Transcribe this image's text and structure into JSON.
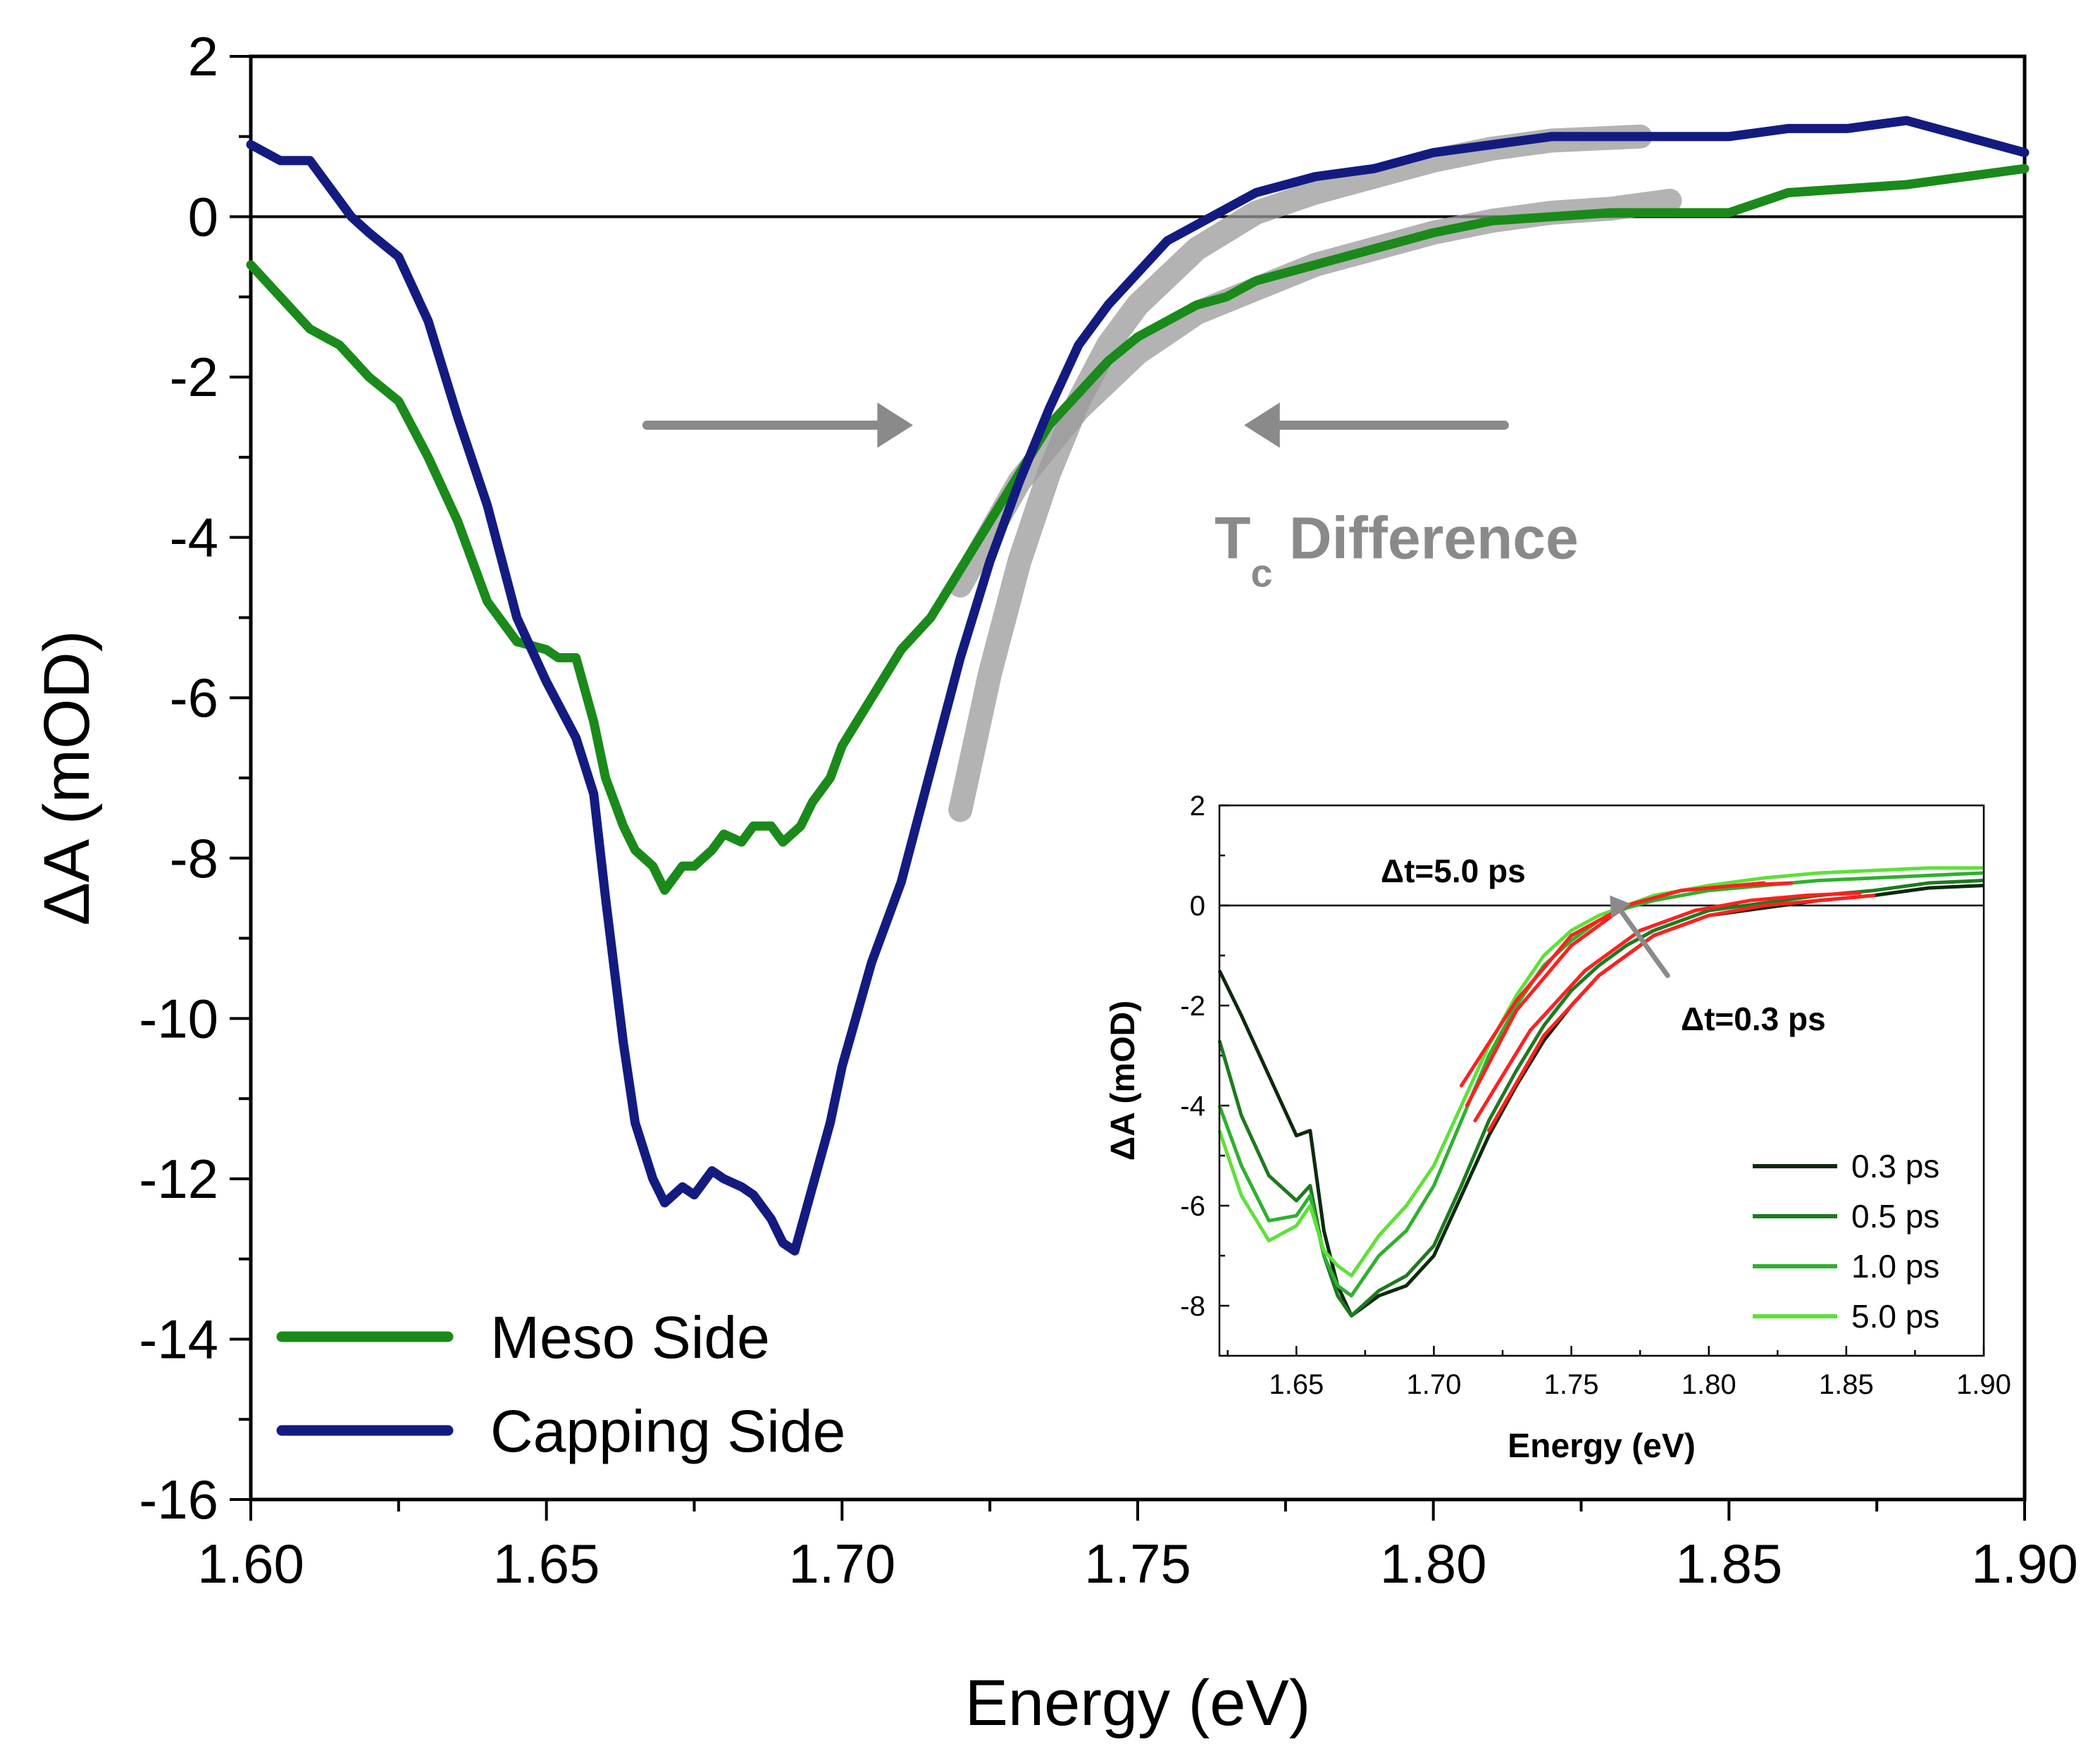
{
  "chart_data": [
    {
      "type": "line",
      "xlabel": "Energy (eV)",
      "ylabel": "ΔA (mOD)",
      "xlim": [
        1.6,
        1.9
      ],
      "ylim": [
        -16,
        2
      ],
      "xticks": [
        1.6,
        1.65,
        1.7,
        1.75,
        1.8,
        1.85,
        1.9
      ],
      "xtick_labels": [
        "1.60",
        "1.65",
        "1.70",
        "1.75",
        "1.80",
        "1.85",
        "1.90"
      ],
      "yticks": [
        -16,
        -14,
        -12,
        -10,
        -8,
        -6,
        -4,
        -2,
        0,
        2
      ],
      "ytick_labels": [
        "-16",
        "-14",
        "-12",
        "-10",
        "-8",
        "-6",
        "-4",
        "-2",
        "0",
        "2"
      ],
      "legend_position": "bottom-left",
      "series": [
        {
          "name": "Meso Side",
          "color": "#1a8a1a",
          "x": [
            1.6,
            1.605,
            1.61,
            1.615,
            1.62,
            1.625,
            1.63,
            1.635,
            1.64,
            1.645,
            1.65,
            1.652,
            1.655,
            1.658,
            1.66,
            1.663,
            1.665,
            1.668,
            1.67,
            1.673,
            1.675,
            1.678,
            1.68,
            1.683,
            1.685,
            1.688,
            1.69,
            1.693,
            1.695,
            1.698,
            1.7,
            1.705,
            1.71,
            1.715,
            1.72,
            1.725,
            1.73,
            1.735,
            1.74,
            1.745,
            1.75,
            1.755,
            1.76,
            1.765,
            1.77,
            1.775,
            1.78,
            1.785,
            1.79,
            1.795,
            1.8,
            1.81,
            1.82,
            1.83,
            1.84,
            1.85,
            1.86,
            1.87,
            1.88,
            1.89,
            1.9
          ],
          "y": [
            -0.6,
            -1.0,
            -1.4,
            -1.6,
            -2.0,
            -2.3,
            -3.0,
            -3.8,
            -4.8,
            -5.3,
            -5.4,
            -5.5,
            -5.5,
            -6.3,
            -7.0,
            -7.6,
            -7.9,
            -8.1,
            -8.4,
            -8.1,
            -8.1,
            -7.9,
            -7.7,
            -7.8,
            -7.6,
            -7.6,
            -7.8,
            -7.6,
            -7.3,
            -7.0,
            -6.6,
            -6.0,
            -5.4,
            -5.0,
            -4.4,
            -3.8,
            -3.2,
            -2.6,
            -2.2,
            -1.8,
            -1.5,
            -1.3,
            -1.1,
            -1.0,
            -0.8,
            -0.7,
            -0.6,
            -0.5,
            -0.4,
            -0.3,
            -0.2,
            -0.05,
            0.0,
            0.05,
            0.05,
            0.05,
            0.3,
            0.35,
            0.4,
            0.5,
            0.6
          ]
        },
        {
          "name": "Capping Side",
          "color": "#141b80",
          "x": [
            1.6,
            1.605,
            1.61,
            1.613,
            1.617,
            1.62,
            1.625,
            1.63,
            1.635,
            1.64,
            1.645,
            1.65,
            1.655,
            1.658,
            1.66,
            1.663,
            1.665,
            1.668,
            1.67,
            1.673,
            1.675,
            1.678,
            1.68,
            1.683,
            1.685,
            1.688,
            1.69,
            1.692,
            1.695,
            1.698,
            1.7,
            1.705,
            1.71,
            1.715,
            1.72,
            1.725,
            1.73,
            1.735,
            1.74,
            1.745,
            1.75,
            1.755,
            1.76,
            1.765,
            1.77,
            1.775,
            1.78,
            1.79,
            1.8,
            1.81,
            1.82,
            1.83,
            1.84,
            1.85,
            1.86,
            1.87,
            1.88,
            1.89,
            1.9
          ],
          "y": [
            0.9,
            0.7,
            0.7,
            0.4,
            0.0,
            -0.2,
            -0.5,
            -1.3,
            -2.5,
            -3.6,
            -5.0,
            -5.8,
            -6.5,
            -7.2,
            -8.5,
            -10.3,
            -11.3,
            -12.0,
            -12.3,
            -12.1,
            -12.2,
            -11.9,
            -12.0,
            -12.1,
            -12.2,
            -12.5,
            -12.8,
            -12.9,
            -12.1,
            -11.3,
            -10.6,
            -9.3,
            -8.3,
            -6.9,
            -5.5,
            -4.3,
            -3.3,
            -2.4,
            -1.6,
            -1.1,
            -0.7,
            -0.3,
            -0.1,
            0.1,
            0.3,
            0.4,
            0.5,
            0.6,
            0.8,
            0.9,
            1.0,
            1.0,
            1.0,
            1.0,
            1.1,
            1.1,
            1.2,
            1.0,
            0.8
          ]
        }
      ],
      "fit_curves": [
        {
          "name": "meso-fit",
          "color": "#9a9a9a",
          "x": [
            1.72,
            1.73,
            1.74,
            1.75,
            1.76,
            1.77,
            1.78,
            1.79,
            1.8,
            1.81,
            1.82,
            1.83,
            1.84
          ],
          "y": [
            -4.6,
            -3.3,
            -2.4,
            -1.7,
            -1.2,
            -0.9,
            -0.6,
            -0.4,
            -0.2,
            -0.05,
            0.05,
            0.1,
            0.2
          ]
        },
        {
          "name": "capping-fit",
          "color": "#9a9a9a",
          "x": [
            1.72,
            1.725,
            1.73,
            1.735,
            1.74,
            1.745,
            1.75,
            1.76,
            1.77,
            1.78,
            1.79,
            1.8,
            1.81,
            1.82,
            1.835
          ],
          "y": [
            -7.4,
            -5.7,
            -4.3,
            -3.2,
            -2.3,
            -1.6,
            -1.1,
            -0.4,
            0.05,
            0.3,
            0.5,
            0.7,
            0.85,
            0.95,
            1.0
          ]
        }
      ],
      "annotations": {
        "right_arrow": {
          "from": [
            1.667,
            -2.6
          ],
          "to": [
            1.712,
            -2.6
          ]
        },
        "left_arrow": {
          "from": [
            1.812,
            -2.6
          ],
          "to": [
            1.768,
            -2.6
          ]
        },
        "tc_label_main": "T",
        "tc_label_sub": "c",
        "tc_label_rest": " Difference",
        "tc_label_anchor": [
          1.763,
          -4.0
        ]
      }
    },
    {
      "type": "line",
      "xlabel": "Energy (eV)",
      "ylabel": "ΔA (mOD)",
      "xlim": [
        1.622,
        1.9
      ],
      "ylim": [
        -9,
        2
      ],
      "xticks": [
        1.65,
        1.7,
        1.75,
        1.8,
        1.85,
        1.9
      ],
      "xtick_labels": [
        "1.65",
        "1.70",
        "1.75",
        "1.80",
        "1.85",
        "1.90"
      ],
      "yticks": [
        -8,
        -6,
        -4,
        -2,
        0,
        2
      ],
      "ytick_labels": [
        "-8",
        "-6",
        "-4",
        "-2",
        "0",
        "2"
      ],
      "legend_position": "bottom-right",
      "series": [
        {
          "name": "0.3 ps",
          "color": "#0d2a0d",
          "x": [
            1.622,
            1.63,
            1.64,
            1.65,
            1.655,
            1.66,
            1.665,
            1.67,
            1.68,
            1.69,
            1.7,
            1.71,
            1.72,
            1.73,
            1.74,
            1.75,
            1.76,
            1.77,
            1.78,
            1.79,
            1.8,
            1.82,
            1.84,
            1.86,
            1.88,
            1.9
          ],
          "y": [
            -1.3,
            -2.2,
            -3.4,
            -4.6,
            -4.5,
            -6.5,
            -7.6,
            -8.2,
            -7.8,
            -7.6,
            -7.0,
            -5.8,
            -4.6,
            -3.6,
            -2.7,
            -2.0,
            -1.4,
            -1.0,
            -0.6,
            -0.4,
            -0.2,
            -0.05,
            0.1,
            0.2,
            0.35,
            0.4
          ]
        },
        {
          "name": "0.5 ps",
          "color": "#1e7a1e",
          "x": [
            1.622,
            1.63,
            1.64,
            1.65,
            1.655,
            1.66,
            1.665,
            1.67,
            1.68,
            1.69,
            1.7,
            1.71,
            1.72,
            1.73,
            1.74,
            1.75,
            1.76,
            1.77,
            1.78,
            1.79,
            1.8,
            1.82,
            1.84,
            1.86,
            1.88,
            1.9
          ],
          "y": [
            -2.7,
            -4.2,
            -5.4,
            -5.9,
            -5.6,
            -7.0,
            -7.8,
            -8.2,
            -7.7,
            -7.4,
            -6.8,
            -5.6,
            -4.3,
            -3.3,
            -2.4,
            -1.7,
            -1.2,
            -0.8,
            -0.5,
            -0.3,
            -0.1,
            0.05,
            0.2,
            0.3,
            0.45,
            0.5
          ]
        },
        {
          "name": "1.0 ps",
          "color": "#2fb02f",
          "x": [
            1.622,
            1.63,
            1.64,
            1.65,
            1.655,
            1.66,
            1.665,
            1.67,
            1.68,
            1.69,
            1.7,
            1.71,
            1.72,
            1.73,
            1.74,
            1.75,
            1.76,
            1.77,
            1.78,
            1.79,
            1.8,
            1.82,
            1.84,
            1.86,
            1.88,
            1.9
          ],
          "y": [
            -4.0,
            -5.2,
            -6.3,
            -6.2,
            -5.8,
            -7.0,
            -7.6,
            -7.8,
            -7.0,
            -6.5,
            -5.6,
            -4.3,
            -3.0,
            -2.0,
            -1.2,
            -0.7,
            -0.3,
            -0.05,
            0.1,
            0.2,
            0.3,
            0.4,
            0.5,
            0.55,
            0.6,
            0.65
          ]
        },
        {
          "name": "5.0 ps",
          "color": "#5fe03a",
          "x": [
            1.622,
            1.63,
            1.64,
            1.65,
            1.655,
            1.66,
            1.665,
            1.67,
            1.68,
            1.69,
            1.7,
            1.71,
            1.72,
            1.73,
            1.74,
            1.75,
            1.76,
            1.77,
            1.78,
            1.79,
            1.8,
            1.82,
            1.84,
            1.86,
            1.88,
            1.9
          ],
          "y": [
            -4.5,
            -5.8,
            -6.7,
            -6.4,
            -6.0,
            -6.9,
            -7.2,
            -7.4,
            -6.6,
            -6.0,
            -5.2,
            -4.0,
            -2.8,
            -1.8,
            -1.0,
            -0.5,
            -0.2,
            0.0,
            0.2,
            0.3,
            0.4,
            0.55,
            0.65,
            0.7,
            0.75,
            0.75
          ]
        }
      ],
      "fit_curves": [
        {
          "name": "fit-0.3",
          "color": "#ff2020",
          "x": [
            1.72,
            1.74,
            1.76,
            1.78,
            1.8,
            1.82,
            1.84,
            1.86
          ],
          "y": [
            -4.5,
            -2.6,
            -1.4,
            -0.6,
            -0.2,
            0.0,
            0.1,
            0.2
          ]
        },
        {
          "name": "fit-0.5",
          "color": "#ff2020",
          "x": [
            1.715,
            1.735,
            1.755,
            1.775,
            1.795,
            1.815,
            1.835,
            1.855
          ],
          "y": [
            -4.3,
            -2.5,
            -1.3,
            -0.5,
            -0.1,
            0.1,
            0.2,
            0.25
          ]
        },
        {
          "name": "fit-1.0",
          "color": "#ff2020",
          "x": [
            1.712,
            1.73,
            1.75,
            1.77,
            1.79,
            1.81,
            1.83
          ],
          "y": [
            -4.0,
            -2.1,
            -0.8,
            0.0,
            0.3,
            0.4,
            0.45
          ]
        },
        {
          "name": "fit-5.0",
          "color": "#ff2020",
          "x": [
            1.71,
            1.73,
            1.75,
            1.77,
            1.79,
            1.81,
            1.82
          ],
          "y": [
            -3.6,
            -1.9,
            -0.6,
            0.0,
            0.3,
            0.4,
            0.45
          ]
        }
      ],
      "annotations": {
        "label_late": "Δt=5.0 ps",
        "label_early": "Δt=0.3 ps",
        "arrow": {
          "from": [
            1.785,
            -1.4
          ],
          "to": [
            1.764,
            0.2
          ]
        }
      }
    }
  ]
}
